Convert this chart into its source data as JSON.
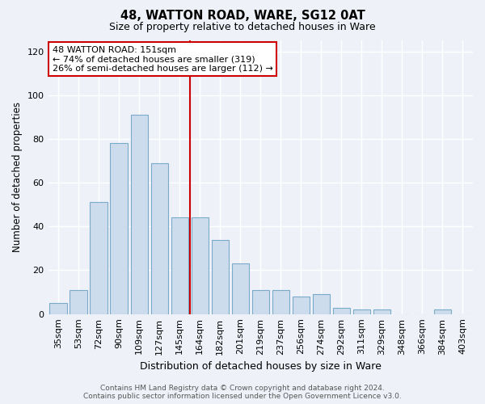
{
  "title": "48, WATTON ROAD, WARE, SG12 0AT",
  "subtitle": "Size of property relative to detached houses in Ware",
  "xlabel": "Distribution of detached houses by size in Ware",
  "ylabel": "Number of detached properties",
  "bin_labels": [
    "35sqm",
    "53sqm",
    "72sqm",
    "90sqm",
    "109sqm",
    "127sqm",
    "145sqm",
    "164sqm",
    "182sqm",
    "201sqm",
    "219sqm",
    "237sqm",
    "256sqm",
    "274sqm",
    "292sqm",
    "311sqm",
    "329sqm",
    "348sqm",
    "366sqm",
    "384sqm",
    "403sqm"
  ],
  "bar_values": [
    5,
    11,
    51,
    78,
    91,
    69,
    44,
    44,
    34,
    23,
    11,
    11,
    8,
    9,
    3,
    2,
    2,
    0,
    0,
    2,
    0
  ],
  "bar_color": "#ccdcec",
  "bar_edge_color": "#7aaaca",
  "ylim": [
    0,
    125
  ],
  "yticks": [
    0,
    20,
    40,
    60,
    80,
    100,
    120
  ],
  "red_line_color": "#cc0000",
  "red_line_bin_index": 7,
  "annotation_title": "48 WATTON ROAD: 151sqm",
  "annotation_line1": "← 74% of detached houses are smaller (319)",
  "annotation_line2": "26% of semi-detached houses are larger (112) →",
  "annotation_box_color": "#ffffff",
  "annotation_box_edge": "#cc0000",
  "background_color": "#eef2f8",
  "grid_color": "#ffffff",
  "footer1": "Contains HM Land Registry data © Crown copyright and database right 2024.",
  "footer2": "Contains public sector information licensed under the Open Government Licence v3.0."
}
